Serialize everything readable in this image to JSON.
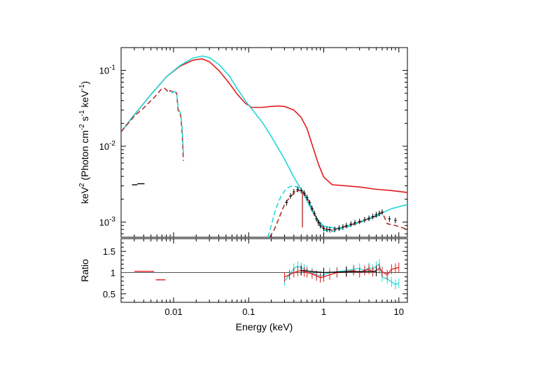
{
  "chart_data": {
    "type": "line",
    "x_scale": "log",
    "y_scale_top": "log",
    "y_scale_bottom": "linear",
    "xlabel": "Energy (keV)",
    "xlim": [
      0.002,
      13
    ],
    "x_ticks": [
      {
        "value": 0.01,
        "label": "0.01"
      },
      {
        "value": 0.1,
        "label": "0.1"
      },
      {
        "value": 1,
        "label": "1"
      },
      {
        "value": 10,
        "label": "10"
      }
    ],
    "top_panel": {
      "ylabel": {
        "pre": "keV",
        "sup1": "2",
        "mid": " (Photon cm",
        "sup2": "-2",
        "mid2": " s",
        "sup3": "-1",
        "mid3": " keV",
        "sup4": "-1",
        "post": ")"
      },
      "ylim": [
        0.00063,
        0.2
      ],
      "y_ticks": [
        {
          "value": 0.1,
          "base": "10",
          "exp": "-1"
        },
        {
          "value": 0.01,
          "base": "10",
          "exp": "-2"
        },
        {
          "value": 0.001,
          "base": "10",
          "exp": "-3"
        }
      ],
      "series": [
        {
          "color": "#e31a1c",
          "style": "solid",
          "points": [
            [
              0.002,
              0.0155
            ],
            [
              0.003,
              0.026
            ],
            [
              0.005,
              0.048
            ],
            [
              0.008,
              0.082
            ],
            [
              0.012,
              0.113
            ],
            [
              0.018,
              0.136
            ],
            [
              0.024,
              0.142
            ],
            [
              0.03,
              0.13
            ],
            [
              0.04,
              0.1
            ],
            [
              0.055,
              0.068
            ],
            [
              0.07,
              0.049
            ],
            [
              0.09,
              0.037
            ],
            [
              0.11,
              0.0325
            ],
            [
              0.15,
              0.0325
            ],
            [
              0.2,
              0.0335
            ],
            [
              0.25,
              0.034
            ],
            [
              0.3,
              0.0335
            ],
            [
              0.4,
              0.03
            ],
            [
              0.5,
              0.024
            ],
            [
              0.6,
              0.017
            ],
            [
              0.7,
              0.0105
            ],
            [
              0.85,
              0.0058
            ],
            [
              1,
              0.0039
            ],
            [
              1.3,
              0.0031
            ],
            [
              2,
              0.003
            ],
            [
              3,
              0.0029
            ],
            [
              5,
              0.0027
            ],
            [
              8,
              0.0026
            ],
            [
              13,
              0.00245
            ]
          ]
        },
        {
          "color": "#22d8d8",
          "style": "solid",
          "points": [
            [
              0.002,
              0.0155
            ],
            [
              0.003,
              0.026
            ],
            [
              0.005,
              0.048
            ],
            [
              0.008,
              0.082
            ],
            [
              0.012,
              0.115
            ],
            [
              0.018,
              0.145
            ],
            [
              0.024,
              0.155
            ],
            [
              0.03,
              0.148
            ],
            [
              0.04,
              0.12
            ],
            [
              0.055,
              0.085
            ],
            [
              0.07,
              0.058
            ],
            [
              0.09,
              0.04
            ],
            [
              0.11,
              0.031
            ],
            [
              0.15,
              0.021
            ],
            [
              0.2,
              0.0135
            ],
            [
              0.3,
              0.0068
            ],
            [
              0.4,
              0.0039
            ],
            [
              0.5,
              0.0027
            ],
            [
              0.6,
              0.0019
            ],
            [
              0.7,
              0.0014
            ],
            [
              0.85,
              0.00105
            ],
            [
              1,
              0.00088
            ],
            [
              1.5,
              0.00082
            ],
            [
              2,
              0.00088
            ],
            [
              3,
              0.001
            ],
            [
              5,
              0.00122
            ],
            [
              8,
              0.0015
            ],
            [
              13,
              0.0017
            ]
          ]
        },
        {
          "color": "#b03030",
          "style": "dashed",
          "points": [
            [
              0.002,
              0.0155
            ],
            [
              0.003,
              0.025
            ],
            [
              0.004,
              0.032
            ],
            [
              0.005,
              0.04
            ],
            [
              0.006,
              0.048
            ],
            [
              0.0068,
              0.056
            ],
            [
              0.0075,
              0.058
            ],
            [
              0.008,
              0.056
            ],
            [
              0.0085,
              0.051
            ],
            [
              0.009,
              0.054
            ],
            [
              0.0095,
              0.053
            ],
            [
              0.01,
              0.05
            ],
            [
              0.0105,
              0.052
            ],
            [
              0.011,
              0.05
            ],
            [
              0.0115,
              0.03
            ],
            [
              0.012,
              0.027
            ],
            [
              0.0125,
              0.025
            ],
            [
              0.013,
              0.015
            ],
            [
              0.0135,
              0.0064
            ]
          ]
        },
        {
          "color": "#22d8d8",
          "style": "dashed",
          "points": [
            [
              0.0095,
              0.05
            ],
            [
              0.01,
              0.053
            ],
            [
              0.0105,
              0.052
            ],
            [
              0.011,
              0.05
            ],
            [
              0.0115,
              0.032
            ],
            [
              0.012,
              0.029
            ],
            [
              0.0125,
              0.026
            ],
            [
              0.013,
              0.017
            ],
            [
              0.0135,
              0.008
            ]
          ]
        },
        {
          "color": "#22d8d8",
          "style": "dashed",
          "points": [
            [
              0.18,
              0.00063
            ],
            [
              0.2,
              0.0009
            ],
            [
              0.23,
              0.0015
            ],
            [
              0.27,
              0.0022
            ],
            [
              0.32,
              0.0028
            ],
            [
              0.38,
              0.003
            ],
            [
              0.45,
              0.0029
            ],
            [
              0.52,
              0.0026
            ],
            [
              0.6,
              0.0021
            ],
            [
              0.7,
              0.0015
            ],
            [
              0.8,
              0.0011
            ],
            [
              0.9,
              0.00088
            ],
            [
              1,
              0.00078
            ],
            [
              1.3,
              0.00075
            ],
            [
              2,
              0.00085
            ],
            [
              3,
              0.00098
            ],
            [
              5,
              0.00118
            ],
            [
              6,
              0.00128
            ]
          ]
        },
        {
          "color": "#b03030",
          "style": "dashed",
          "points": [
            [
              0.19,
              0.00063
            ],
            [
              0.22,
              0.0008
            ],
            [
              0.26,
              0.0012
            ],
            [
              0.3,
              0.0017
            ],
            [
              0.35,
              0.0021
            ],
            [
              0.4,
              0.0024
            ],
            [
              0.45,
              0.0026
            ],
            [
              0.5,
              0.0026
            ],
            [
              0.55,
              0.0024
            ],
            [
              0.65,
              0.0018
            ],
            [
              0.75,
              0.0013
            ],
            [
              0.85,
              0.001
            ],
            [
              1,
              0.00082
            ],
            [
              1.3,
              0.00078
            ],
            [
              2,
              0.00088
            ],
            [
              3,
              0.001
            ],
            [
              5,
              0.0012
            ],
            [
              6,
              0.00135
            ],
            [
              7,
              0.00095
            ],
            [
              9,
              0.0009
            ],
            [
              13,
              0.0008
            ]
          ]
        }
      ],
      "data_points": {
        "color": "#000000",
        "points": [
          [
            0.32,
            0.0018
          ],
          [
            0.36,
            0.0022
          ],
          [
            0.4,
            0.0025
          ],
          [
            0.45,
            0.0027
          ],
          [
            0.5,
            0.0026
          ],
          [
            0.55,
            0.0024
          ],
          [
            0.6,
            0.0021
          ],
          [
            0.65,
            0.0018
          ],
          [
            0.7,
            0.0015
          ],
          [
            0.75,
            0.0013
          ],
          [
            0.8,
            0.0011
          ],
          [
            0.85,
            0.00098
          ],
          [
            0.9,
            0.0009
          ],
          [
            1,
            0.00082
          ],
          [
            1.1,
            0.0008
          ],
          [
            1.2,
            0.00079
          ],
          [
            1.4,
            0.0008
          ],
          [
            1.6,
            0.00083
          ],
          [
            1.8,
            0.00086
          ],
          [
            2,
            0.0009
          ],
          [
            2.3,
            0.00094
          ],
          [
            2.6,
            0.00098
          ],
          [
            3,
            0.00102
          ],
          [
            3.5,
            0.00107
          ],
          [
            4,
            0.00112
          ],
          [
            4.5,
            0.00118
          ],
          [
            5,
            0.00125
          ],
          [
            5.5,
            0.0013
          ],
          [
            6,
            0.00135
          ],
          [
            7.5,
            0.0011
          ],
          [
            9,
            0.00105
          ]
        ],
        "bars": [
          [
            0.0028,
            0.0033,
            0.0031
          ],
          [
            0.0033,
            0.0041,
            0.0032
          ]
        ]
      }
    },
    "bottom_panel": {
      "ylabel": "Ratio",
      "ylim": [
        0.3,
        1.8
      ],
      "y_ticks": [
        {
          "value": 0.5,
          "label": "0.5"
        },
        {
          "value": 1,
          "label": "1"
        },
        {
          "value": 1.5,
          "label": "1.5"
        }
      ],
      "reference_line": 1,
      "segments": [
        {
          "color": "#e31a1c",
          "x0": 0.003,
          "x1": 0.0055,
          "y": 1.03
        },
        {
          "color": "#e31a1c",
          "x0": 0.0058,
          "x1": 0.0078,
          "y": 0.83
        }
      ],
      "ratio_series": [
        {
          "color": "#22d8d8",
          "points": [
            [
              0.3,
              0.8
            ],
            [
              0.35,
              0.95
            ],
            [
              0.4,
              1.1
            ],
            [
              0.45,
              1.15
            ],
            [
              0.5,
              1.12
            ],
            [
              0.55,
              1.08
            ],
            [
              0.6,
              1.05
            ],
            [
              0.7,
              1.0
            ],
            [
              0.8,
              0.95
            ],
            [
              0.9,
              0.92
            ],
            [
              1,
              0.95
            ],
            [
              1.2,
              1.0
            ],
            [
              1.5,
              1.02
            ],
            [
              2,
              1.05
            ],
            [
              2.5,
              1.08
            ],
            [
              3,
              1.1
            ],
            [
              3.5,
              1.05
            ],
            [
              4,
              1.12
            ],
            [
              4.5,
              1.08
            ],
            [
              5,
              1.15
            ],
            [
              5.5,
              1.2
            ],
            [
              6,
              0.9
            ],
            [
              7,
              0.85
            ],
            [
              8,
              0.78
            ],
            [
              9,
              0.72
            ],
            [
              10,
              0.75
            ]
          ]
        },
        {
          "color": "#e31a1c",
          "points": [
            [
              0.3,
              0.9
            ],
            [
              0.35,
              0.95
            ],
            [
              0.4,
              1.0
            ],
            [
              0.45,
              1.03
            ],
            [
              0.5,
              1.05
            ],
            [
              0.55,
              1.02
            ],
            [
              0.6,
              1.0
            ],
            [
              0.7,
              0.97
            ],
            [
              0.8,
              0.92
            ],
            [
              0.9,
              0.88
            ],
            [
              1,
              0.9
            ],
            [
              1.2,
              0.95
            ],
            [
              1.5,
              1.0
            ],
            [
              2,
              1.02
            ],
            [
              2.5,
              1.05
            ],
            [
              3,
              1.0
            ],
            [
              3.5,
              1.05
            ],
            [
              4,
              1.08
            ],
            [
              4.5,
              1.02
            ],
            [
              5,
              1.05
            ],
            [
              5.5,
              1.1
            ],
            [
              6,
              1.02
            ],
            [
              7,
              0.95
            ],
            [
              8,
              1.08
            ],
            [
              9,
              1.1
            ],
            [
              10,
              1.12
            ]
          ]
        },
        {
          "color": "#000000",
          "points": [
            [
              0.5,
              1.05
            ],
            [
              1,
              1.0
            ],
            [
              2,
              1.02
            ],
            [
              5,
              1.03
            ]
          ]
        }
      ]
    }
  }
}
